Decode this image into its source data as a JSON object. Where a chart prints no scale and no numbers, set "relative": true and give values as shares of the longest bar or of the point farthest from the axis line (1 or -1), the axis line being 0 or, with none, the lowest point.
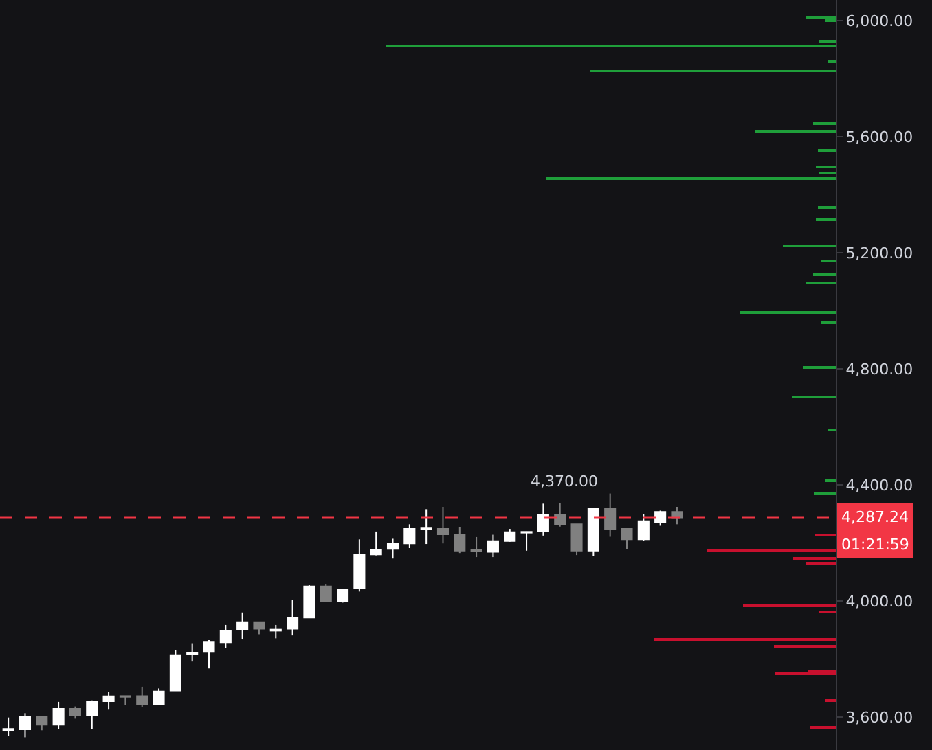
{
  "chart_data": [
    {
      "type": "candlestick",
      "categories": [
        null,
        null,
        null,
        null,
        null,
        null,
        null,
        null,
        null,
        null,
        null,
        null,
        null,
        null,
        null,
        null,
        null,
        null,
        null,
        null,
        null,
        null,
        null,
        null,
        null,
        null,
        null,
        null,
        null,
        null,
        null,
        null,
        null,
        null,
        null,
        null,
        null,
        null,
        null,
        null,
        null,
        null,
        null,
        null,
        null,
        null,
        null,
        null,
        null,
        null
      ],
      "ohlc": [
        [
          3553,
          3598,
          3534,
          3559
        ],
        [
          3557,
          3613,
          3530,
          3600
        ],
        [
          3600,
          3600,
          3554,
          3573
        ],
        [
          3573,
          3652,
          3559,
          3628
        ],
        [
          3628,
          3636,
          3594,
          3605
        ],
        [
          3606,
          3657,
          3559,
          3652
        ],
        [
          3654,
          3685,
          3625,
          3671
        ],
        [
          3672,
          3673,
          3641,
          3669
        ],
        [
          3672,
          3704,
          3633,
          3644
        ],
        [
          3644,
          3698,
          3644,
          3688
        ],
        [
          3691,
          3830,
          3691,
          3813
        ],
        [
          3815,
          3854,
          3791,
          3822
        ],
        [
          3824,
          3865,
          3767,
          3857
        ],
        [
          3857,
          3917,
          3838,
          3898
        ],
        [
          3900,
          3960,
          3867,
          3927
        ],
        [
          3927,
          3928,
          3885,
          3904
        ],
        [
          3897,
          3917,
          3871,
          3901
        ],
        [
          3904,
          4002,
          3881,
          3941
        ],
        [
          3942,
          4054,
          3942,
          4050
        ],
        [
          4050,
          4058,
          3996,
          3999
        ],
        [
          3999,
          4040,
          3994,
          4039
        ],
        [
          4042,
          4212,
          4032,
          4159
        ],
        [
          4160,
          4239,
          4157,
          4177
        ],
        [
          4179,
          4214,
          4146,
          4196
        ],
        [
          4198,
          4264,
          4182,
          4248
        ],
        [
          4246,
          4316,
          4196,
          4250
        ],
        [
          4248,
          4324,
          4198,
          4229
        ],
        [
          4229,
          4253,
          4165,
          4173
        ],
        [
          4175,
          4220,
          4151,
          4172
        ],
        [
          4169,
          4228,
          4151,
          4206
        ],
        [
          4206,
          4248,
          4204,
          4237
        ],
        [
          4235,
          4239,
          4173,
          4238
        ],
        [
          4240,
          4335,
          4225,
          4296
        ],
        [
          4296,
          4338,
          4256,
          4264
        ],
        [
          4264,
          4264,
          4158,
          4173
        ],
        [
          4173,
          4320,
          4155,
          4319
        ],
        [
          4319,
          4370,
          4221,
          4248
        ],
        [
          4248,
          4248,
          4177,
          4212
        ],
        [
          4212,
          4300,
          4206,
          4275
        ],
        [
          4272,
          4311,
          4259,
          4307
        ],
        [
          4307,
          4324,
          4264,
          4287.24
        ],
        null,
        null,
        null,
        null,
        null,
        null,
        null,
        null,
        null
      ],
      "colors": [
        "#ffffff",
        "#ffffff",
        "#808080",
        "#ffffff",
        "#808080",
        "#ffffff",
        "#ffffff",
        "#808080",
        "#808080",
        "#ffffff",
        "#ffffff",
        "#ffffff",
        "#ffffff",
        "#ffffff",
        "#ffffff",
        "#808080",
        "#ffffff",
        "#ffffff",
        "#ffffff",
        "#808080",
        "#ffffff",
        "#ffffff",
        "#ffffff",
        "#ffffff",
        "#ffffff",
        "#ffffff",
        "#808080",
        "#808080",
        "#808080",
        "#ffffff",
        "#ffffff",
        "#ffffff",
        "#ffffff",
        "#808080",
        "#808080",
        "#ffffff",
        "#808080",
        "#808080",
        "#ffffff",
        "#ffffff",
        "#808080",
        null,
        null,
        null,
        null,
        null,
        null,
        null,
        null,
        null
      ],
      "ylim": [
        3486,
        6071
      ],
      "yticks": [
        {
          "value": 3600,
          "label": "3,600.00"
        },
        {
          "value": 4000,
          "label": "4,000.00"
        },
        {
          "value": 4400,
          "label": "4,400.00"
        },
        {
          "value": 4800,
          "label": "4,800.00"
        },
        {
          "value": 5200,
          "label": "5,200.00"
        },
        {
          "value": 5600,
          "label": "5,600.00"
        },
        {
          "value": 6000,
          "label": "6,000.00"
        }
      ],
      "tick_labels": "y",
      "grid": false,
      "ref_lines": [
        {
          "axis": "y",
          "value": 4287.24,
          "label": "4,287.24",
          "color": "#f23645",
          "line_style": "dashed"
        }
      ],
      "annotations": [
        "4,370.00",
        "01:21:59"
      ]
    },
    {
      "type": "bar",
      "orientation": "horizontal",
      "relative": true,
      "ylim": [
        3486,
        6071
      ],
      "tick_labels": false,
      "series": [
        {
          "color": "#1f9e3a",
          "x": [
            6011,
            6000,
            5929,
            5913,
            5858,
            5826,
            5645,
            5617,
            5553,
            5495,
            5474,
            5456,
            5356,
            5314,
            5224,
            5172,
            5124,
            5097,
            4993,
            4958,
            4804,
            4704,
            4588,
            4414,
            4371
          ],
          "values": [
            0.066,
            0.025,
            0.036,
            1.0,
            0.017,
            0.547,
            0.05,
            0.18,
            0.04,
            0.044,
            0.038,
            0.646,
            0.04,
            0.044,
            0.117,
            0.034,
            0.05,
            0.066,
            0.214,
            0.034,
            0.074,
            0.097,
            0.017,
            0.025,
            0.049
          ]
        },
        {
          "color": "#c8102e",
          "x": [
            4228,
            4174,
            4146,
            4130,
            3983,
            3961,
            3867,
            3843,
            3756,
            3748,
            3657,
            3565
          ],
          "values": [
            0.046,
            0.288,
            0.095,
            0.066,
            0.206,
            0.036,
            0.405,
            0.138,
            0.061,
            0.135,
            0.025,
            0.056
          ]
        }
      ]
    }
  ]
}
